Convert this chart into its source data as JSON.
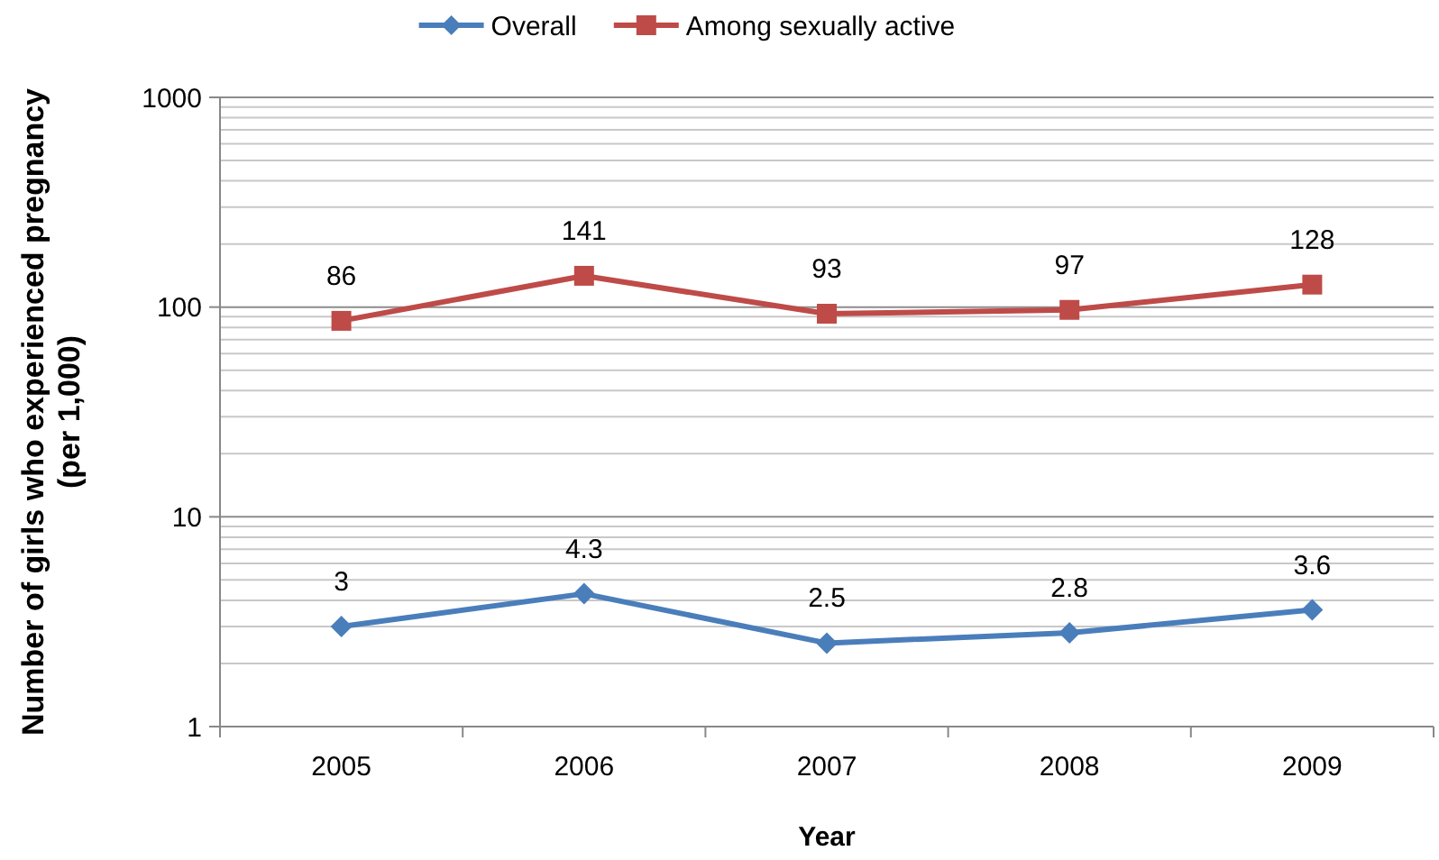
{
  "chart_data": {
    "type": "line",
    "xlabel": "Year",
    "ylabel": "Number of girls who experienced pregnancy\n(per 1,000)",
    "categories": [
      "2005",
      "2006",
      "2007",
      "2008",
      "2009"
    ],
    "series": [
      {
        "name": "Overall",
        "color": "#4a7ebb",
        "marker": "diamond",
        "values": [
          3,
          4.3,
          2.5,
          2.8,
          3.6
        ]
      },
      {
        "name": "Among sexually active",
        "color": "#be4b48",
        "marker": "square",
        "values": [
          86,
          141,
          93,
          97,
          128
        ]
      }
    ],
    "log": true,
    "ylim": [
      1,
      1000
    ],
    "yticks": [
      1,
      10,
      100,
      1000
    ],
    "grid": "y",
    "legend": "top",
    "data_labels": true
  }
}
